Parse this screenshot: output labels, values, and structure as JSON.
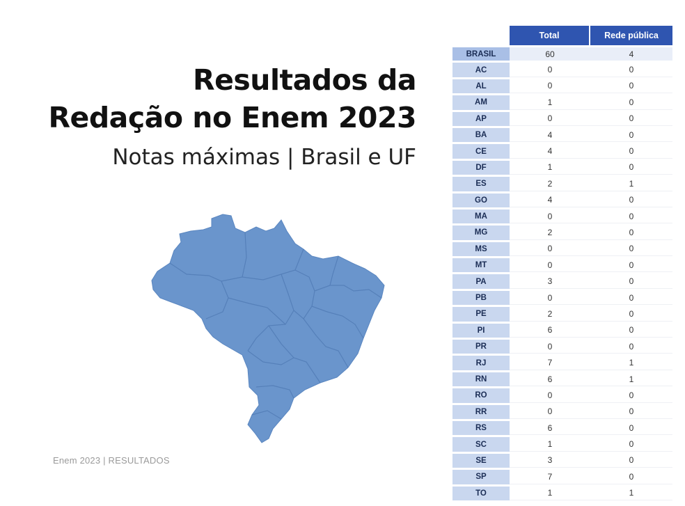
{
  "title_line1": "Resultados da",
  "title_line2": "Redação no Enem 2023",
  "subtitle": "Notas máximas | Brasil e UF",
  "footer": "Enem 2023 | RESULTADOS",
  "colors": {
    "map_fill": "#6a95cc",
    "header_bg": "#2f55b0",
    "uf_cell_bg": "#c9d7ef"
  },
  "table": {
    "headers": [
      "Total",
      "Rede pública"
    ],
    "rows": [
      {
        "uf": "BRASIL",
        "total": "60",
        "rede_publica": "4"
      },
      {
        "uf": "AC",
        "total": "0",
        "rede_publica": "0"
      },
      {
        "uf": "AL",
        "total": "0",
        "rede_publica": "0"
      },
      {
        "uf": "AM",
        "total": "1",
        "rede_publica": "0"
      },
      {
        "uf": "AP",
        "total": "0",
        "rede_publica": "0"
      },
      {
        "uf": "BA",
        "total": "4",
        "rede_publica": "0"
      },
      {
        "uf": "CE",
        "total": "4",
        "rede_publica": "0"
      },
      {
        "uf": "DF",
        "total": "1",
        "rede_publica": "0"
      },
      {
        "uf": "ES",
        "total": "2",
        "rede_publica": "1"
      },
      {
        "uf": "GO",
        "total": "4",
        "rede_publica": "0"
      },
      {
        "uf": "MA",
        "total": "0",
        "rede_publica": "0"
      },
      {
        "uf": "MG",
        "total": "2",
        "rede_publica": "0"
      },
      {
        "uf": "MS",
        "total": "0",
        "rede_publica": "0"
      },
      {
        "uf": "MT",
        "total": "0",
        "rede_publica": "0"
      },
      {
        "uf": "PA",
        "total": "3",
        "rede_publica": "0"
      },
      {
        "uf": "PB",
        "total": "0",
        "rede_publica": "0"
      },
      {
        "uf": "PE",
        "total": "2",
        "rede_publica": "0"
      },
      {
        "uf": "PI",
        "total": "6",
        "rede_publica": "0"
      },
      {
        "uf": "PR",
        "total": "0",
        "rede_publica": "0"
      },
      {
        "uf": "RJ",
        "total": "7",
        "rede_publica": "1"
      },
      {
        "uf": "RN",
        "total": "6",
        "rede_publica": "1"
      },
      {
        "uf": "RO",
        "total": "0",
        "rede_publica": "0"
      },
      {
        "uf": "RR",
        "total": "0",
        "rede_publica": "0"
      },
      {
        "uf": "RS",
        "total": "6",
        "rede_publica": "0"
      },
      {
        "uf": "SC",
        "total": "1",
        "rede_publica": "0"
      },
      {
        "uf": "SE",
        "total": "3",
        "rede_publica": "0"
      },
      {
        "uf": "SP",
        "total": "7",
        "rede_publica": "0"
      },
      {
        "uf": "TO",
        "total": "1",
        "rede_publica": "1"
      }
    ]
  }
}
